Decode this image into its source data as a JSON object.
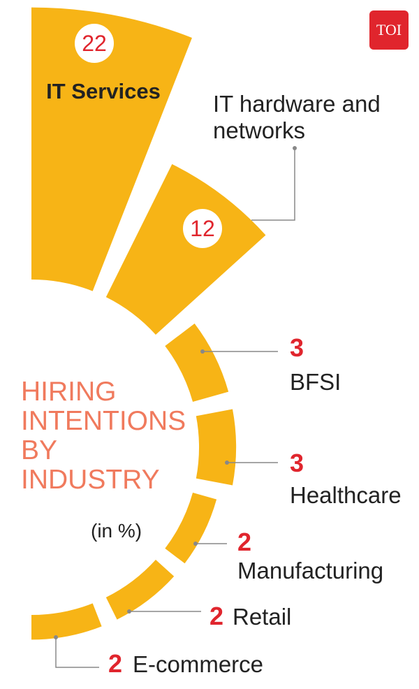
{
  "chart_data": {
    "type": "radial_bar",
    "title": "HIRING INTENTIONS BY INDUSTRY",
    "subtitle": "(in %)",
    "logo": "TOI",
    "categories": [
      "IT Services",
      "IT hardware and networks",
      "BFSI",
      "Healthcare",
      "Manufacturing",
      "Retail",
      "E-commerce"
    ],
    "values": [
      22,
      12,
      3,
      3,
      2,
      2,
      2
    ],
    "color": "#f7b416",
    "value_color": "#e0252d",
    "title_color": "#f07a5d",
    "logo_color": "#e0252d"
  }
}
